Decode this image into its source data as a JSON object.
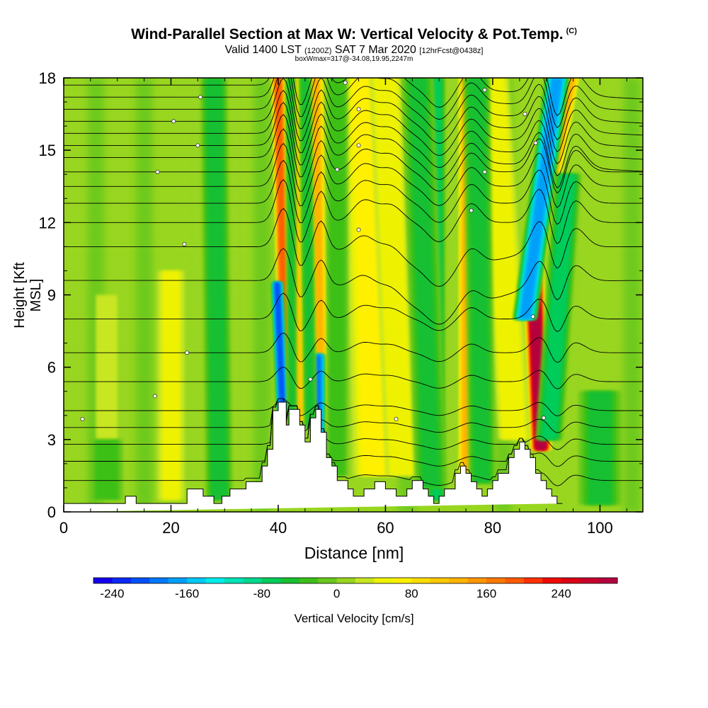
{
  "header": {
    "title": "Wind-Parallel Section at Max W: Vertical Velocity & Pot.Temp.",
    "copyright_mark": "(C)",
    "valid_prefix": "Valid 1400 LST",
    "valid_z": "(1200Z)",
    "valid_date": "SAT 7 Mar 2020",
    "forecast": "[12hrFcst@0438z]",
    "box_info": "boxWmax=317@-34.08,19.95,2247m"
  },
  "chart_data": {
    "type": "heatmap",
    "xlabel": "Distance [nm]",
    "ylabel": "Height [Kft MSL]",
    "xlim": [
      0,
      108
    ],
    "ylim": [
      0,
      18
    ],
    "x_ticks": [
      0,
      20,
      40,
      60,
      80,
      100
    ],
    "y_ticks": [
      0,
      3,
      6,
      9,
      12,
      15,
      18
    ],
    "colorbar": {
      "title": "Vertical Velocity [cm/s]",
      "levels": [
        -260,
        -240,
        -220,
        -200,
        -180,
        -160,
        -140,
        -120,
        -100,
        -80,
        -60,
        -40,
        -20,
        0,
        20,
        40,
        60,
        80,
        100,
        120,
        140,
        160,
        180,
        200,
        220,
        240,
        260,
        280,
        300
      ],
      "labels": [
        "-240",
        "-160",
        "-80",
        "0",
        "80",
        "160",
        "240"
      ],
      "colors": [
        "#1500ee",
        "#0a28f5",
        "#0050f8",
        "#0078fa",
        "#00a0fa",
        "#00c8f5",
        "#00ecea",
        "#00e2b8",
        "#00d88c",
        "#00cc5a",
        "#18c030",
        "#3cc018",
        "#68c81c",
        "#98d620",
        "#c8e620",
        "#eef200",
        "#fff000",
        "#ffdc00",
        "#ffc800",
        "#ffb400",
        "#ff9600",
        "#ff7800",
        "#ff5a00",
        "#ff3000",
        "#ee0a00",
        "#dc0014",
        "#c8002a",
        "#b4003e"
      ]
    },
    "terrain_profile": {
      "x": [
        0,
        11.5,
        11.5,
        13.5,
        13.5,
        23,
        23,
        26,
        26,
        28,
        28,
        29.5,
        29.5,
        31,
        31,
        34,
        34,
        37,
        37,
        38,
        38,
        39,
        39,
        40,
        40,
        41.5,
        41.5,
        42,
        42,
        44,
        44,
        45,
        45,
        46,
        46,
        47,
        47,
        48,
        48,
        49,
        49,
        50,
        50,
        51,
        51,
        53,
        53,
        54,
        54,
        56,
        56,
        58,
        58,
        60,
        60,
        62,
        62,
        64,
        64,
        65,
        65,
        67,
        67,
        68,
        68,
        69,
        69,
        70,
        70,
        71,
        71,
        73,
        73,
        74,
        74,
        75,
        75,
        76,
        76,
        77,
        77,
        78,
        78,
        79,
        79,
        80,
        80,
        81,
        81,
        83,
        83,
        84,
        84,
        85,
        85,
        86,
        86,
        87,
        87,
        88,
        88,
        89,
        89,
        90,
        90,
        91,
        91,
        92,
        92,
        93,
        93,
        94,
        94,
        95,
        95,
        108
      ],
      "kft": [
        0.35,
        0.35,
        0.65,
        0.65,
        0.35,
        0.35,
        0.95,
        0.95,
        0.65,
        0.65,
        0.35,
        0.35,
        0.65,
        0.65,
        0.95,
        0.95,
        1.25,
        1.25,
        1.9,
        1.9,
        2.6,
        2.6,
        4.2,
        4.2,
        4.55,
        4.55,
        3.6,
        3.6,
        4.25,
        4.25,
        3.6,
        3.6,
        2.9,
        2.9,
        3.9,
        3.9,
        4.25,
        4.25,
        3.3,
        3.3,
        2.25,
        2.25,
        1.9,
        1.9,
        1.3,
        1.3,
        0.95,
        0.95,
        0.65,
        0.65,
        0.95,
        0.95,
        1.25,
        1.25,
        0.95,
        0.95,
        0.65,
        0.65,
        0.95,
        0.95,
        1.3,
        1.3,
        0.95,
        0.95,
        0.65,
        0.65,
        0.35,
        0.35,
        0.65,
        0.65,
        0.95,
        0.95,
        1.6,
        1.6,
        1.9,
        1.9,
        1.6,
        1.6,
        1.25,
        1.25,
        0.95,
        0.95,
        0.65,
        0.65,
        0.95,
        0.95,
        1.3,
        1.3,
        1.6,
        1.6,
        2.25,
        2.25,
        2.6,
        2.6,
        2.9,
        2.9,
        2.6,
        2.6,
        2.25,
        2.25,
        1.6,
        1.6,
        1.3,
        1.3,
        0.95,
        0.95,
        0.65,
        0.65,
        0.35,
        0.35
      ]
    },
    "updraft_bands": [
      {
        "x_base": 41.5,
        "x_top": 40,
        "width": 1.1,
        "y_bottom": 3.3,
        "y_top": 18,
        "w": 180
      },
      {
        "x_base": 44,
        "x_top": 42.8,
        "width": 1.2,
        "y_bottom": 3.8,
        "y_top": 18,
        "w": 100
      },
      {
        "x_base": 48,
        "x_top": 47,
        "width": 1.3,
        "y_bottom": 3.5,
        "y_top": 18,
        "w": 120
      },
      {
        "x_base": 58,
        "x_top": 56,
        "width": 4.0,
        "y_bottom": 1.5,
        "y_top": 18,
        "w": 60
      },
      {
        "x_base": 63,
        "x_top": 60,
        "width": 3.0,
        "y_bottom": 1.5,
        "y_top": 18,
        "w": 55
      },
      {
        "x_base": 75,
        "x_top": 75,
        "width": 1.3,
        "y_bottom": 1.5,
        "y_top": 18,
        "w": 120
      },
      {
        "x_base": 84,
        "x_top": 80,
        "width": 3.0,
        "y_bottom": 3.0,
        "y_top": 18,
        "w": 55
      },
      {
        "x_base": 89,
        "x_top": 87.5,
        "width": 1.9,
        "y_bottom": 2.6,
        "y_top": 10.5,
        "w": 300
      },
      {
        "x_base": 87,
        "x_top": 94.5,
        "width": 1.6,
        "y_bottom": 9.0,
        "y_top": 18,
        "w": 130
      },
      {
        "x_base": 20,
        "x_top": 20,
        "width": 2.5,
        "y_bottom": 0.5,
        "y_top": 10,
        "w": 40
      },
      {
        "x_base": 8,
        "x_top": 8,
        "width": 2.0,
        "y_bottom": 0.5,
        "y_top": 9,
        "w": 30
      }
    ],
    "downdraft_bands": [
      {
        "x_base": 40.8,
        "x_top": 39.8,
        "width": 1.0,
        "y_bottom": 4.2,
        "y_top": 9.5,
        "w": -220
      },
      {
        "x_base": 47.5,
        "x_top": 47.5,
        "width": 1.2,
        "y_bottom": 2.0,
        "y_top": 6.5,
        "w": -200
      },
      {
        "x_base": 42.6,
        "x_top": 42.3,
        "width": 0.9,
        "y_bottom": 3.0,
        "y_top": 18,
        "w": -60
      },
      {
        "x_base": 46,
        "x_top": 45,
        "width": 1.2,
        "y_bottom": 3.5,
        "y_top": 18,
        "w": -60
      },
      {
        "x_base": 69.5,
        "x_top": 69.5,
        "width": 1.6,
        "y_bottom": 0.5,
        "y_top": 18,
        "w": -90
      },
      {
        "x_base": 68.5,
        "x_top": 66,
        "width": 3.0,
        "y_bottom": 1.0,
        "y_top": 18,
        "w": -60
      },
      {
        "x_base": 78,
        "x_top": 77,
        "width": 2.5,
        "y_bottom": 1.2,
        "y_top": 18,
        "w": -70
      },
      {
        "x_base": 86,
        "x_top": 92,
        "width": 2.2,
        "y_bottom": 8.0,
        "y_top": 18,
        "w": -190
      },
      {
        "x_base": 90.5,
        "x_top": 94,
        "width": 2.5,
        "y_bottom": 3.0,
        "y_top": 14,
        "w": -90
      },
      {
        "x_base": 29,
        "x_top": 28,
        "width": 2.5,
        "y_bottom": 0.5,
        "y_top": 18,
        "w": -70
      },
      {
        "x_base": 51,
        "x_top": 51,
        "width": 2.0,
        "y_bottom": 1.5,
        "y_top": 18,
        "w": -50
      },
      {
        "x_base": 100,
        "x_top": 100,
        "width": 4.0,
        "y_bottom": 0.3,
        "y_top": 5,
        "w": -60
      },
      {
        "x_base": 8,
        "x_top": 8,
        "width": 3.0,
        "y_bottom": 0.5,
        "y_top": 3,
        "w": -50
      }
    ],
    "isentropes_kft": [
      1.3,
      2.1,
      2.8,
      3.5,
      4.2,
      5.4,
      6.6,
      8.0,
      9.6,
      11.0,
      12.0,
      12.8,
      13.5,
      14.1,
      14.7,
      15.2,
      15.7,
      16.2,
      16.7,
      17.2,
      17.7
    ],
    "isentrope_labels": [
      {
        "x": 3.5,
        "y": 3.85
      },
      {
        "x": 17,
        "y": 4.8
      },
      {
        "x": 23,
        "y": 6.6
      },
      {
        "x": 22.5,
        "y": 11.1
      },
      {
        "x": 17.5,
        "y": 14.1
      },
      {
        "x": 25,
        "y": 15.2
      },
      {
        "x": 20.5,
        "y": 16.2
      },
      {
        "x": 25.5,
        "y": 17.2
      },
      {
        "x": 46,
        "y": 5.5
      },
      {
        "x": 52.5,
        "y": 17.8
      },
      {
        "x": 55,
        "y": 11.7
      },
      {
        "x": 51,
        "y": 14.2
      },
      {
        "x": 55,
        "y": 15.2
      },
      {
        "x": 55,
        "y": 16.7
      },
      {
        "x": 62,
        "y": 3.85
      },
      {
        "x": 76,
        "y": 12.5
      },
      {
        "x": 78.5,
        "y": 14.1
      },
      {
        "x": 78.5,
        "y": 17.5
      },
      {
        "x": 86,
        "y": 16.5
      },
      {
        "x": 88,
        "y": 15.3
      },
      {
        "x": 87.5,
        "y": 8.1
      },
      {
        "x": 89.5,
        "y": 3.9
      }
    ]
  }
}
